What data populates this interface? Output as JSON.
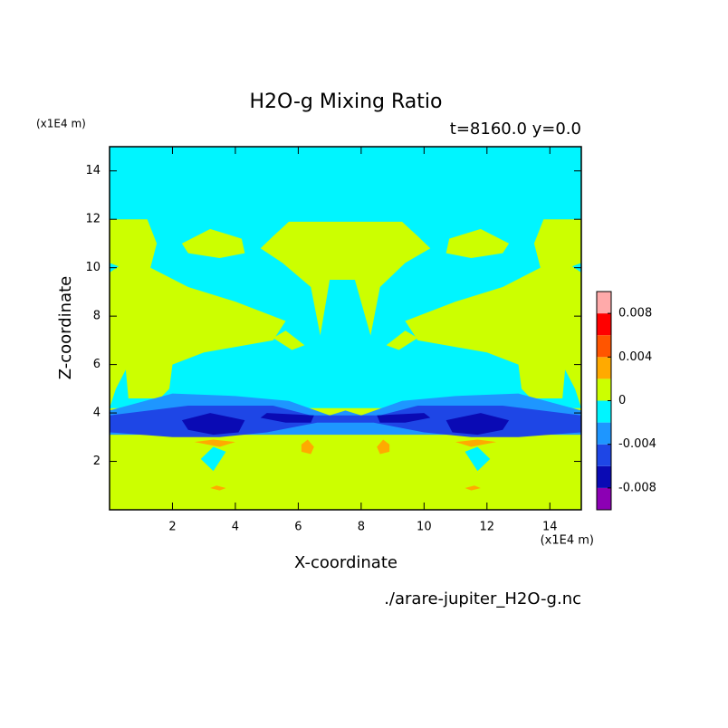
{
  "chart_data": {
    "type": "contour",
    "title": "H2O-g Mixing Ratio",
    "subtitle": "t=8160.0 y=0.0",
    "x_label": "X-coordinate",
    "y_label": "Z-coordinate",
    "x_unit": "(x1E4 m)",
    "y_unit": "(x1E4 m)",
    "footer": "./arare-jupiter_H2O-g.nc",
    "xlim": [
      0,
      15
    ],
    "xticks": [
      2,
      4,
      6,
      8,
      10,
      12,
      14
    ],
    "ylim": [
      0,
      15
    ],
    "yticks": [
      2,
      4,
      6,
      8,
      10,
      12,
      14
    ],
    "colorbar": {
      "levels": [
        -0.01,
        -0.008,
        -0.006,
        -0.004,
        -0.002,
        0,
        0.002,
        0.004,
        0.006,
        0.008,
        0.01
      ],
      "colors": [
        "#8c00b4",
        "#0a0ab4",
        "#1e46e6",
        "#1e96ff",
        "#00f5ff",
        "#ccff00",
        "#ffaa00",
        "#ff5500",
        "#ff0000",
        "#ffaaaa"
      ],
      "ticks": [
        -0.008,
        -0.004,
        0,
        0.004,
        0.008
      ]
    }
  }
}
